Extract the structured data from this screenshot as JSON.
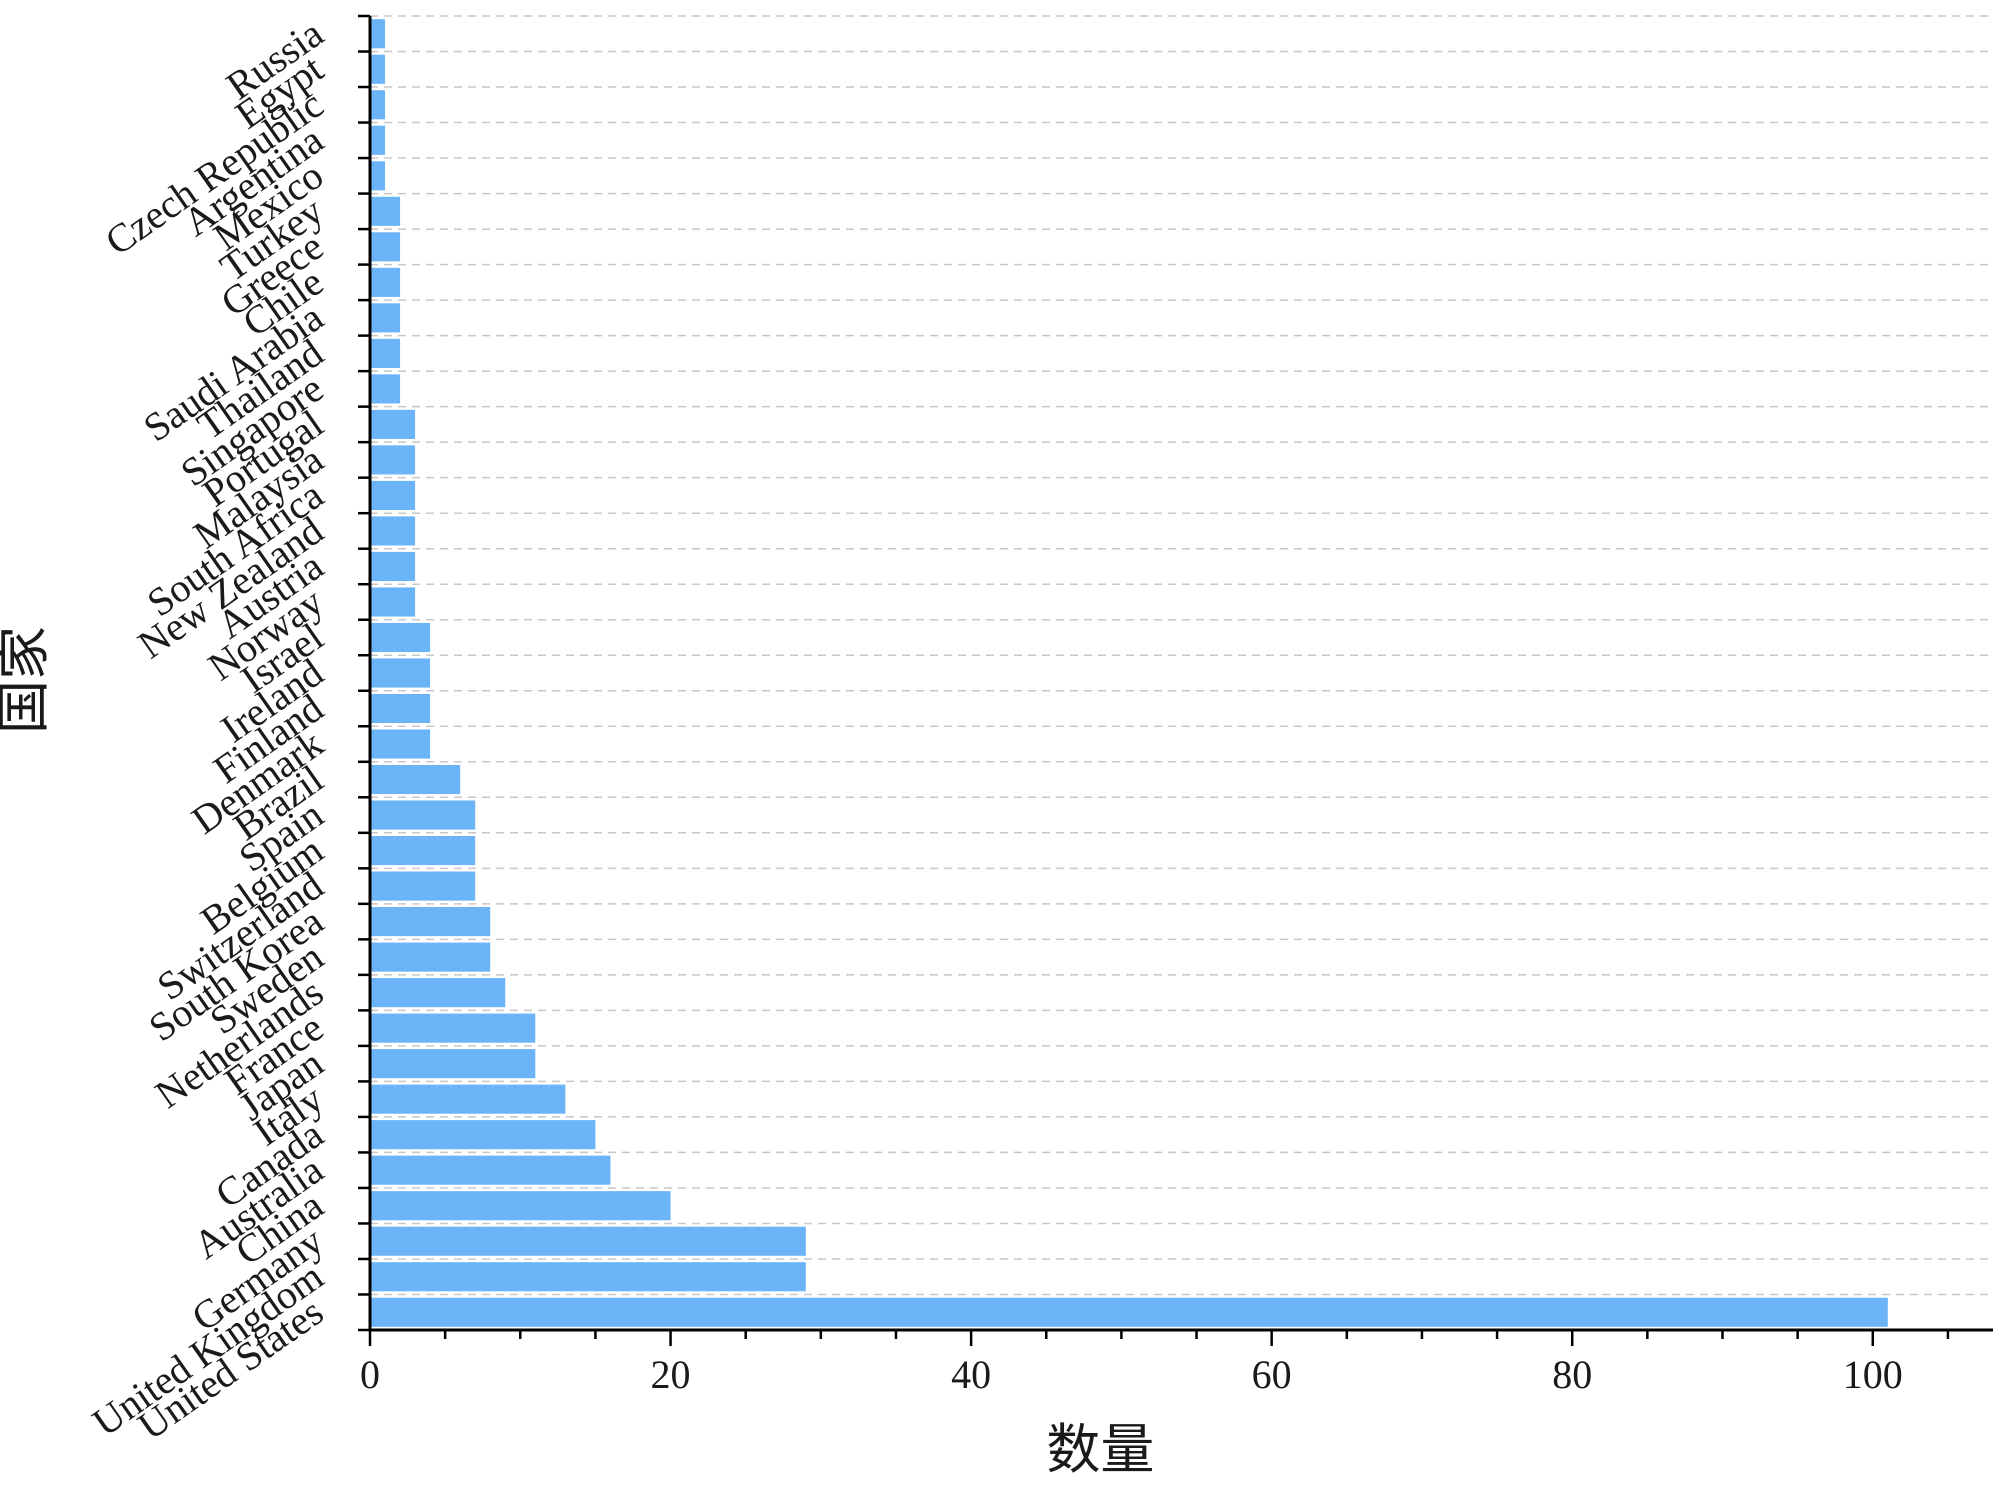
{
  "chart_data": {
    "type": "bar",
    "orientation": "horizontal",
    "xlabel": "数量",
    "ylabel": "国家",
    "xlim": [
      0,
      108
    ],
    "xticks": [
      0,
      20,
      40,
      60,
      80,
      100
    ],
    "grid": "horizontal-dashed",
    "bar_color": "#6cb4f8",
    "categories": [
      "United States",
      "United Kingdom",
      "Germany",
      "China",
      "Australia",
      "Canada",
      "Italy",
      "Japan",
      "France",
      "Netherlands",
      "Sweden",
      "South Korea",
      "Switzerland",
      "Belgium",
      "Spain",
      "Brazil",
      "Denmark",
      "Finland",
      "Ireland",
      "Israel",
      "Norway",
      "Austria",
      "New Zealand",
      "South Africa",
      "Malaysia",
      "Portugal",
      "Singapore",
      "Thailand",
      "Saudi Arabia",
      "Chile",
      "Greece",
      "Turkey",
      "Mexico",
      "Argentina",
      "Czech Republic",
      "Egypt",
      "Russia"
    ],
    "values": [
      101,
      29,
      29,
      20,
      16,
      15,
      13,
      11,
      11,
      9,
      8,
      8,
      7,
      7,
      7,
      6,
      4,
      4,
      4,
      4,
      3,
      3,
      3,
      3,
      3,
      3,
      2,
      2,
      2,
      2,
      2,
      2,
      1,
      1,
      1,
      1,
      1
    ]
  }
}
